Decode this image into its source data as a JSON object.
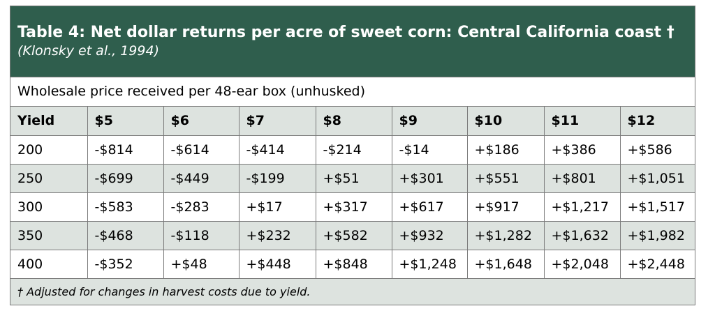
{
  "table": {
    "title": "Table 4: Net dollar returns per acre of sweet corn: Central California coast †",
    "subtitle": "(Klonsky et al., 1994)",
    "caption": "Wholesale price received per 48-ear box (unhusked)",
    "header": [
      "Yield",
      "$5",
      "$6",
      "$7",
      "$8",
      "$9",
      "$10",
      "$11",
      "$12"
    ],
    "rows": [
      [
        "200",
        "-$814",
        "-$614",
        "-$414",
        "-$214",
        "-$14",
        "+$186",
        "+$386",
        "+$586"
      ],
      [
        "250",
        "-$699",
        "-$449",
        "-$199",
        "+$51",
        "+$301",
        "+$551",
        "+$801",
        "+$1,051"
      ],
      [
        "300",
        "-$583",
        "-$283",
        "+$17",
        "+$317",
        "+$617",
        "+$917",
        "+$1,217",
        "+$1,517"
      ],
      [
        "350",
        "-$468",
        "-$118",
        "+$232",
        "+$582",
        "+$932",
        "+$1,282",
        "+$1,632",
        "+$1,982"
      ],
      [
        "400",
        "-$352",
        "+$48",
        "+$448",
        "+$848",
        "+$1,248",
        "+$1,648",
        "+$2,048",
        "+$2,448"
      ]
    ],
    "footnote": "† Adjusted for changes in harvest costs due to yield."
  }
}
